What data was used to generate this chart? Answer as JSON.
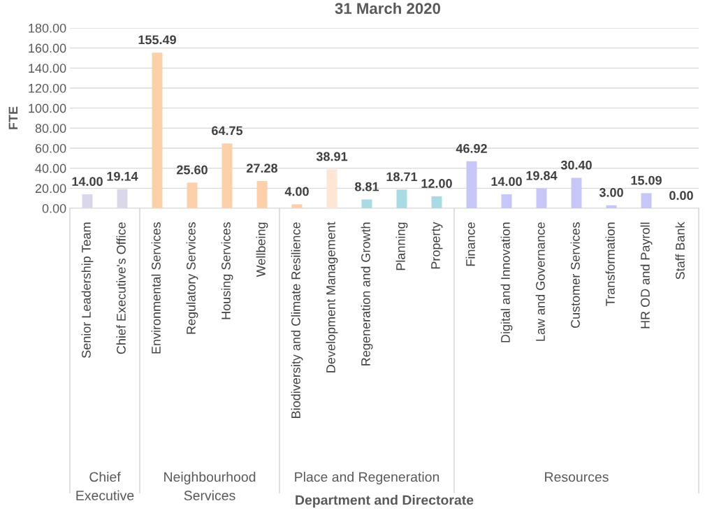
{
  "chart_data": {
    "type": "bar",
    "title": "31 March 2020",
    "ylabel": "FTE",
    "categories": [
      "Senior Leadership Team",
      "Chief Executive's Office",
      "Environmental Services",
      "Regulatory Services",
      "Housing Services",
      "Wellbeing",
      "Biodiversity and Climate Resilience",
      "Development Management",
      "Regeneration and Growth",
      "Planning",
      "Property",
      "Finance",
      "Digital and Innovation",
      "Law and Governance",
      "Customer Services",
      "Transformation",
      "HR OD and Payroll",
      "Staff Bank"
    ],
    "values": [
      14.0,
      19.14,
      155.49,
      25.6,
      64.75,
      27.28,
      4.0,
      38.91,
      8.81,
      18.71,
      12.0,
      46.92,
      14.0,
      19.84,
      30.4,
      3.0,
      15.09,
      0.0
    ],
    "value_labels": [
      "14.00",
      "19.14",
      "155.49",
      "25.60",
      "64.75",
      "27.28",
      "4.00",
      "38.91",
      "8.81",
      "18.71",
      "12.00",
      "46.92",
      "14.00",
      "19.84",
      "30.40",
      "3.00",
      "15.09",
      "0.00"
    ],
    "colors": [
      "#dcd7e8",
      "#dcd7e8",
      "#fcd1aa",
      "#fcd1aa",
      "#fcd1aa",
      "#fcd1aa",
      "#fcd1aa",
      "#fde6d3",
      "#a9dce2",
      "#a9dce2",
      "#a9dce2",
      "#c7c7f7",
      "#c7c7f7",
      "#c7c7f7",
      "#c7c7f7",
      "#c7c7f7",
      "#c7c7f7",
      "#c7c7f7"
    ],
    "annotations": [
      "Chief\nExecutive",
      "Neighbourhood\nServices",
      "Place and Regeneration",
      "Resources",
      "Department and Directorate"
    ],
    "ylim": [
      0,
      180
    ],
    "yticks": [
      {
        "value": 0,
        "label": "0.00"
      },
      {
        "value": 20,
        "label": "20.00"
      },
      {
        "value": 40,
        "label": "40.00"
      },
      {
        "value": 60,
        "label": "60.00"
      },
      {
        "value": 80,
        "label": "80.00"
      },
      {
        "value": 100,
        "label": "100.00"
      },
      {
        "value": 120,
        "label": "120.00"
      },
      {
        "value": 140,
        "label": "140.00"
      },
      {
        "value": 160,
        "label": "160.00"
      },
      {
        "value": 180,
        "label": "180.00"
      }
    ],
    "grid": "y",
    "legend": false
  }
}
